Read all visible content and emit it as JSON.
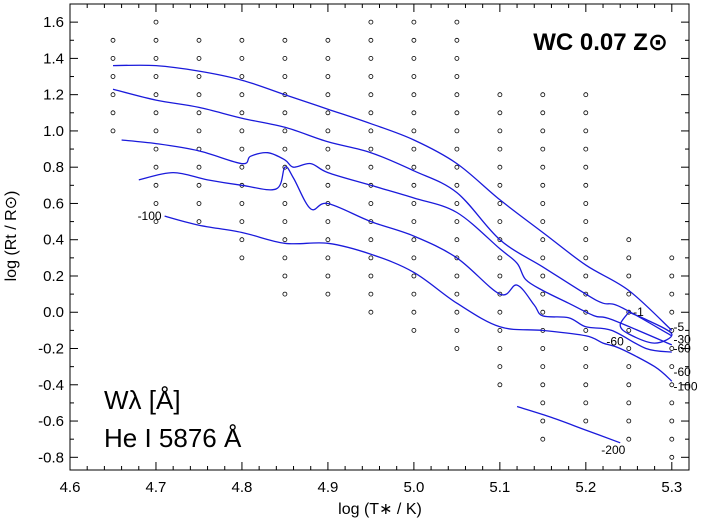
{
  "chart_data": {
    "type": "line",
    "title": "WC 0.07 Z⊙",
    "xlabel": "log (T∗ / K)",
    "ylabel": "log (Rt / R⊙)",
    "annotation": [
      "Wλ  [Å]",
      "He I 5876 Å"
    ],
    "xlim": [
      4.6,
      5.32
    ],
    "ylim": [
      -0.87,
      1.7
    ],
    "x_ticks": [
      4.6,
      4.7,
      4.8,
      4.9,
      5.0,
      5.1,
      5.2,
      5.3
    ],
    "x_tick_labels": [
      "4.6",
      "4.7",
      "4.8",
      "4.9",
      "5.0",
      "5.1",
      "5.2",
      "5.3"
    ],
    "y_ticks": [
      -0.8,
      -0.6,
      -0.4,
      -0.2,
      0.0,
      0.2,
      0.4,
      0.6,
      0.8,
      1.0,
      1.2,
      1.4,
      1.6
    ],
    "y_tick_labels": [
      "-0.8",
      "-0.6",
      "-0.4",
      "-0.2",
      "0.0",
      "0.2",
      "0.4",
      "0.6",
      "0.8",
      "1.0",
      "1.2",
      "1.4",
      "1.6"
    ],
    "line_color": "#1a1adb",
    "grid_points": [
      {
        "x": 4.65,
        "y": [
          1.0,
          1.1,
          1.2,
          1.3,
          1.4,
          1.5
        ]
      },
      {
        "x": 4.7,
        "y": [
          0.5,
          0.6,
          0.7,
          0.8,
          0.9,
          1.0,
          1.1,
          1.2,
          1.3,
          1.4,
          1.5,
          1.6
        ]
      },
      {
        "x": 4.75,
        "y": [
          0.5,
          0.6,
          0.7,
          0.8,
          0.9,
          1.0,
          1.1,
          1.2,
          1.3,
          1.4,
          1.5
        ]
      },
      {
        "x": 4.8,
        "y": [
          0.3,
          0.4,
          0.5,
          0.6,
          0.7,
          0.8,
          0.9,
          1.0,
          1.1,
          1.2,
          1.3,
          1.4,
          1.5
        ]
      },
      {
        "x": 4.85,
        "y": [
          0.1,
          0.2,
          0.3,
          0.4,
          0.5,
          0.6,
          0.7,
          0.8,
          0.9,
          1.0,
          1.1,
          1.2,
          1.3,
          1.4,
          1.5
        ]
      },
      {
        "x": 4.9,
        "y": [
          0.1,
          0.2,
          0.3,
          0.4,
          0.5,
          0.6,
          0.7,
          0.8,
          0.9,
          1.0,
          1.1,
          1.2,
          1.3,
          1.4,
          1.5
        ]
      },
      {
        "x": 4.95,
        "y": [
          0.0,
          0.1,
          0.2,
          0.3,
          0.4,
          0.5,
          0.6,
          0.7,
          0.8,
          0.9,
          1.0,
          1.1,
          1.2,
          1.3,
          1.4,
          1.5,
          1.6
        ]
      },
      {
        "x": 5.0,
        "y": [
          -0.1,
          0.0,
          0.1,
          0.2,
          0.3,
          0.4,
          0.5,
          0.6,
          0.7,
          0.8,
          0.9,
          1.0,
          1.1,
          1.2,
          1.3,
          1.4,
          1.5,
          1.6
        ]
      },
      {
        "x": 5.05,
        "y": [
          -0.2,
          -0.1,
          0.0,
          0.1,
          0.2,
          0.3,
          0.4,
          0.5,
          0.6,
          0.7,
          0.8,
          0.9,
          1.0,
          1.1,
          1.2,
          1.3,
          1.4,
          1.5,
          1.6
        ]
      },
      {
        "x": 5.1,
        "y": [
          -0.4,
          -0.3,
          -0.2,
          -0.1,
          0.0,
          0.1,
          0.2,
          0.3,
          0.4,
          0.5,
          0.6,
          0.7,
          0.8,
          0.9,
          1.0,
          1.1,
          1.2
        ]
      },
      {
        "x": 5.15,
        "y": [
          -0.7,
          -0.6,
          -0.5,
          -0.4,
          -0.3,
          -0.2,
          -0.1,
          0.0,
          0.1,
          0.2,
          0.3,
          0.4,
          0.5,
          0.6,
          0.7,
          0.8,
          0.9,
          1.0,
          1.1,
          1.2
        ]
      },
      {
        "x": 5.2,
        "y": [
          -0.6,
          -0.5,
          -0.4,
          -0.3,
          -0.2,
          -0.1,
          0.0,
          0.1,
          0.2,
          0.3,
          0.4,
          0.5,
          0.6,
          0.7,
          0.8,
          0.9,
          1.0,
          1.1,
          1.2
        ]
      },
      {
        "x": 5.25,
        "y": [
          -0.7,
          -0.6,
          -0.5,
          -0.4,
          -0.3,
          -0.2,
          -0.1,
          0.0,
          0.1,
          0.2,
          0.3,
          0.4
        ]
      },
      {
        "x": 5.3,
        "y": [
          -0.8,
          -0.7,
          -0.6,
          -0.5,
          -0.4,
          -0.3,
          -0.2,
          -0.1,
          0.0,
          0.1,
          0.2,
          0.3
        ]
      }
    ],
    "contours": [
      {
        "points": [
          [
            4.65,
            1.36
          ],
          [
            4.7,
            1.36
          ],
          [
            4.75,
            1.33
          ],
          [
            4.8,
            1.28
          ],
          [
            4.85,
            1.2
          ],
          [
            4.9,
            1.12
          ],
          [
            4.95,
            1.04
          ],
          [
            5.0,
            0.95
          ],
          [
            5.05,
            0.82
          ],
          [
            5.1,
            0.62
          ],
          [
            5.15,
            0.44
          ],
          [
            5.2,
            0.26
          ],
          [
            5.25,
            0.12
          ],
          [
            5.3,
            -0.1
          ]
        ]
      },
      {
        "points": [
          [
            4.65,
            1.23
          ],
          [
            4.7,
            1.17
          ],
          [
            4.75,
            1.13
          ],
          [
            4.8,
            1.07
          ],
          [
            4.85,
            1.02
          ],
          [
            4.9,
            0.94
          ],
          [
            4.95,
            0.88
          ],
          [
            5.0,
            0.78
          ],
          [
            5.05,
            0.66
          ],
          [
            5.1,
            0.4
          ],
          [
            5.15,
            0.25
          ],
          [
            5.2,
            0.1
          ],
          [
            5.22,
            0.05
          ],
          [
            5.24,
            0.03
          ],
          [
            5.3,
            -0.13
          ]
        ]
      },
      {
        "points": [
          [
            4.66,
            0.95
          ],
          [
            4.7,
            0.93
          ],
          [
            4.75,
            0.89
          ],
          [
            4.8,
            0.82
          ],
          [
            4.81,
            0.86
          ],
          [
            4.83,
            0.88
          ],
          [
            4.85,
            0.84
          ],
          [
            4.86,
            0.8
          ],
          [
            4.88,
            0.82
          ],
          [
            4.9,
            0.77
          ],
          [
            4.95,
            0.7
          ],
          [
            5.0,
            0.63
          ],
          [
            5.05,
            0.55
          ],
          [
            5.1,
            0.35
          ],
          [
            5.12,
            0.27
          ],
          [
            5.13,
            0.18
          ],
          [
            5.15,
            0.12
          ],
          [
            5.18,
            0.05
          ],
          [
            5.21,
            -0.02
          ],
          [
            5.23,
            -0.04
          ],
          [
            5.3,
            -0.18
          ]
        ]
      },
      {
        "points": [
          [
            4.68,
            0.73
          ],
          [
            4.72,
            0.77
          ],
          [
            4.76,
            0.73
          ],
          [
            4.8,
            0.7
          ],
          [
            4.84,
            0.68
          ],
          [
            4.85,
            0.8
          ],
          [
            4.86,
            0.74
          ],
          [
            4.88,
            0.57
          ],
          [
            4.9,
            0.6
          ],
          [
            4.95,
            0.5
          ],
          [
            5.0,
            0.42
          ],
          [
            5.05,
            0.3
          ],
          [
            5.1,
            0.1
          ],
          [
            5.12,
            0.15
          ],
          [
            5.14,
            0.04
          ],
          [
            5.15,
            -0.02
          ],
          [
            5.18,
            -0.03
          ],
          [
            5.2,
            -0.08
          ],
          [
            5.23,
            -0.1
          ],
          [
            5.27,
            -0.2
          ],
          [
            5.3,
            -0.22
          ]
        ]
      },
      {
        "points": [
          [
            4.71,
            0.53
          ],
          [
            4.75,
            0.48
          ],
          [
            4.8,
            0.44
          ],
          [
            4.85,
            0.38
          ],
          [
            4.9,
            0.38
          ],
          [
            4.95,
            0.32
          ],
          [
            5.0,
            0.22
          ],
          [
            5.05,
            0.05
          ],
          [
            5.1,
            -0.08
          ],
          [
            5.15,
            -0.1
          ],
          [
            5.2,
            -0.13
          ],
          [
            5.22,
            -0.17
          ],
          [
            5.24,
            -0.2
          ],
          [
            5.28,
            -0.3
          ],
          [
            5.3,
            -0.38
          ]
        ]
      },
      {
        "points": [
          [
            5.25,
            0.0
          ],
          [
            5.27,
            -0.04
          ],
          [
            5.3,
            -0.12
          ],
          [
            5.28,
            -0.17
          ],
          [
            5.25,
            -0.12
          ],
          [
            5.24,
            -0.07
          ],
          [
            5.25,
            0.0
          ]
        ]
      },
      {
        "points": [
          [
            5.12,
            -0.52
          ],
          [
            5.16,
            -0.58
          ],
          [
            5.2,
            -0.65
          ],
          [
            5.24,
            -0.72
          ]
        ]
      }
    ],
    "contour_labels": [
      {
        "text": "-100",
        "x": 4.71,
        "y": 0.53,
        "anchor": "end"
      },
      {
        "text": "-1",
        "x": 5.255,
        "y": 0.0,
        "anchor": "start"
      },
      {
        "text": "-5",
        "x": 5.302,
        "y": -0.08,
        "anchor": "start"
      },
      {
        "text": "-30",
        "x": 5.302,
        "y": -0.15,
        "anchor": "start"
      },
      {
        "text": "-60",
        "x": 5.302,
        "y": -0.2,
        "anchor": "start"
      },
      {
        "text": "-60",
        "x": 5.234,
        "y": -0.16,
        "anchor": "middle"
      },
      {
        "text": "-60",
        "x": 5.302,
        "y": -0.33,
        "anchor": "start"
      },
      {
        "text": "-100",
        "x": 5.302,
        "y": -0.41,
        "anchor": "start"
      },
      {
        "text": "-200",
        "x": 5.232,
        "y": -0.76,
        "anchor": "middle"
      }
    ]
  }
}
